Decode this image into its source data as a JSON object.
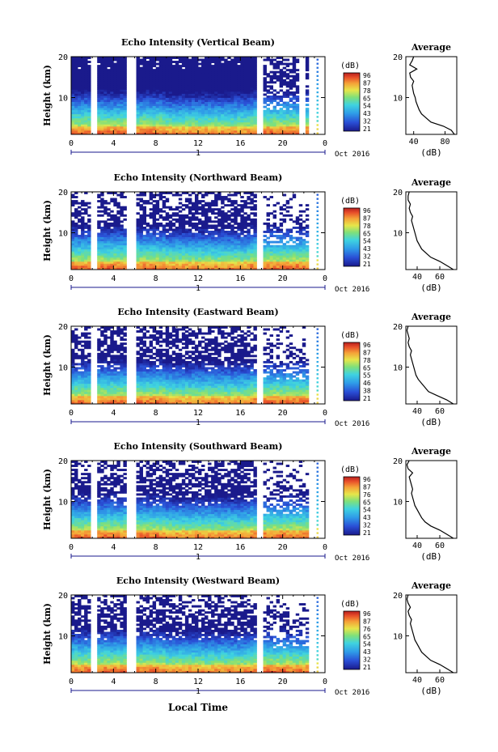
{
  "figure": {
    "xlabel": "Local Time",
    "ylabel": "Height (km)",
    "colorbar_label": "(dB)",
    "average_title": "Average",
    "average_xlabel": "(dB)",
    "date_label": "Oct 2016",
    "day_label": "1"
  },
  "chart_data": [
    {
      "type": "heatmap",
      "title": "Echo Intensity (Vertical Beam)",
      "xlabel": "",
      "ylabel": "Height (km)",
      "x_ticks": [
        "0",
        "4",
        "8",
        "12",
        "16",
        "20",
        "0"
      ],
      "y_ticks": [
        "10",
        "20"
      ],
      "xlim": [
        0,
        24
      ],
      "ylim": [
        1,
        20
      ],
      "colorbar": {
        "label": "(dB)",
        "ticks": [
          "96",
          "87",
          "78",
          "65",
          "54",
          "43",
          "32",
          "21"
        ]
      },
      "gaps_hours": [
        [
          2.0,
          2.4
        ],
        [
          5.3,
          6.0
        ],
        [
          17.6,
          18.0
        ],
        [
          21.5,
          22.3
        ],
        [
          22.6,
          24
        ]
      ],
      "average_profile": {
        "title": "Average",
        "xlabel": "(dB)",
        "x_ticks": [
          "40",
          "80"
        ],
        "xlim": [
          30,
          95
        ],
        "height": [
          1,
          2,
          3,
          4,
          5,
          6,
          7,
          8,
          9,
          10,
          11,
          12,
          13,
          14,
          15,
          16,
          17,
          18,
          19,
          20
        ],
        "value": [
          92,
          88,
          78,
          62,
          56,
          50,
          47,
          45,
          43,
          42,
          40,
          39,
          38,
          40,
          36,
          35,
          44,
          35,
          38,
          40
        ]
      }
    },
    {
      "type": "heatmap",
      "title": "Echo Intensity (Northward Beam)",
      "xlabel": "",
      "ylabel": "Height (km)",
      "x_ticks": [
        "0",
        "4",
        "8",
        "12",
        "16",
        "20",
        "0"
      ],
      "y_ticks": [
        "10",
        "20"
      ],
      "xlim": [
        0,
        24
      ],
      "ylim": [
        1,
        20
      ],
      "colorbar": {
        "label": "(dB)",
        "ticks": [
          "96",
          "87",
          "78",
          "65",
          "54",
          "43",
          "32",
          "21"
        ]
      },
      "gaps_hours": [
        [
          2.0,
          2.4
        ],
        [
          5.3,
          6.0
        ],
        [
          17.6,
          18.0
        ],
        [
          22.6,
          24
        ]
      ],
      "average_profile": {
        "title": "Average",
        "xlabel": "(dB)",
        "x_ticks": [
          "40",
          "60"
        ],
        "xlim": [
          30,
          75
        ],
        "height": [
          1,
          2,
          3,
          4,
          5,
          6,
          7,
          8,
          9,
          10,
          11,
          12,
          13,
          14,
          15,
          16,
          17,
          18,
          19,
          20
        ],
        "value": [
          72,
          66,
          60,
          52,
          48,
          44,
          42,
          40,
          39,
          38,
          37,
          36,
          35,
          36,
          34,
          33,
          34,
          32,
          32,
          33
        ]
      }
    },
    {
      "type": "heatmap",
      "title": "Echo Intensity (Eastward Beam)",
      "xlabel": "",
      "ylabel": "Height (km)",
      "x_ticks": [
        "0",
        "4",
        "8",
        "12",
        "16",
        "20",
        "0"
      ],
      "y_ticks": [
        "10",
        "20"
      ],
      "xlim": [
        0,
        24
      ],
      "ylim": [
        1,
        20
      ],
      "colorbar": {
        "label": "(dB)",
        "ticks": [
          "96",
          "87",
          "78",
          "65",
          "55",
          "46",
          "38",
          "21"
        ]
      },
      "gaps_hours": [
        [
          2.0,
          2.4
        ],
        [
          5.3,
          6.0
        ],
        [
          17.6,
          18.0
        ],
        [
          22.6,
          24
        ]
      ],
      "average_profile": {
        "title": "Average",
        "xlabel": "(dB)",
        "x_ticks": [
          "40",
          "60"
        ],
        "xlim": [
          30,
          75
        ],
        "height": [
          1,
          2,
          3,
          4,
          5,
          6,
          7,
          8,
          9,
          10,
          11,
          12,
          13,
          14,
          15,
          16,
          17,
          18,
          19,
          20
        ],
        "value": [
          72,
          66,
          58,
          50,
          47,
          44,
          41,
          39,
          38,
          37,
          36,
          35,
          34,
          35,
          33,
          32,
          33,
          32,
          31,
          32
        ]
      }
    },
    {
      "type": "heatmap",
      "title": "Echo Intensity (Southward Beam)",
      "xlabel": "",
      "ylabel": "Height (km)",
      "x_ticks": [
        "0",
        "4",
        "8",
        "12",
        "16",
        "20",
        "0"
      ],
      "y_ticks": [
        "10",
        "20"
      ],
      "xlim": [
        0,
        24
      ],
      "ylim": [
        1,
        20
      ],
      "colorbar": {
        "label": "(dB)",
        "ticks": [
          "96",
          "87",
          "76",
          "65",
          "54",
          "43",
          "32",
          "21"
        ]
      },
      "gaps_hours": [
        [
          2.0,
          2.4
        ],
        [
          5.3,
          6.0
        ],
        [
          17.6,
          18.0
        ],
        [
          22.6,
          24
        ]
      ],
      "average_profile": {
        "title": "Average",
        "xlabel": "(dB)",
        "x_ticks": [
          "40",
          "60"
        ],
        "xlim": [
          30,
          75
        ],
        "height": [
          1,
          2,
          3,
          4,
          5,
          6,
          7,
          8,
          9,
          10,
          11,
          12,
          13,
          14,
          15,
          16,
          17,
          18,
          19,
          20
        ],
        "value": [
          72,
          66,
          60,
          52,
          47,
          44,
          42,
          40,
          38,
          37,
          36,
          35,
          36,
          35,
          34,
          33,
          36,
          32,
          31,
          33
        ]
      }
    },
    {
      "type": "heatmap",
      "title": "Echo Intensity (Westward Beam)",
      "xlabel": "Local Time",
      "ylabel": "Height (km)",
      "x_ticks": [
        "0",
        "4",
        "8",
        "12",
        "16",
        "20",
        "0"
      ],
      "y_ticks": [
        "10",
        "20"
      ],
      "xlim": [
        0,
        24
      ],
      "ylim": [
        1,
        20
      ],
      "colorbar": {
        "label": "(dB)",
        "ticks": [
          "96",
          "87",
          "76",
          "65",
          "54",
          "43",
          "32",
          "21"
        ]
      },
      "gaps_hours": [
        [
          2.0,
          2.4
        ],
        [
          5.3,
          6.0
        ],
        [
          17.6,
          18.0
        ],
        [
          22.6,
          24
        ]
      ],
      "average_profile": {
        "title": "Average",
        "xlabel": "(dB)",
        "x_ticks": [
          "40",
          "60"
        ],
        "xlim": [
          30,
          75
        ],
        "height": [
          1,
          2,
          3,
          4,
          5,
          6,
          7,
          8,
          9,
          10,
          11,
          12,
          13,
          14,
          15,
          16,
          17,
          18,
          19,
          20
        ],
        "value": [
          72,
          66,
          60,
          52,
          48,
          44,
          42,
          40,
          38,
          37,
          36,
          35,
          34,
          35,
          33,
          32,
          34,
          32,
          31,
          32
        ]
      }
    }
  ]
}
